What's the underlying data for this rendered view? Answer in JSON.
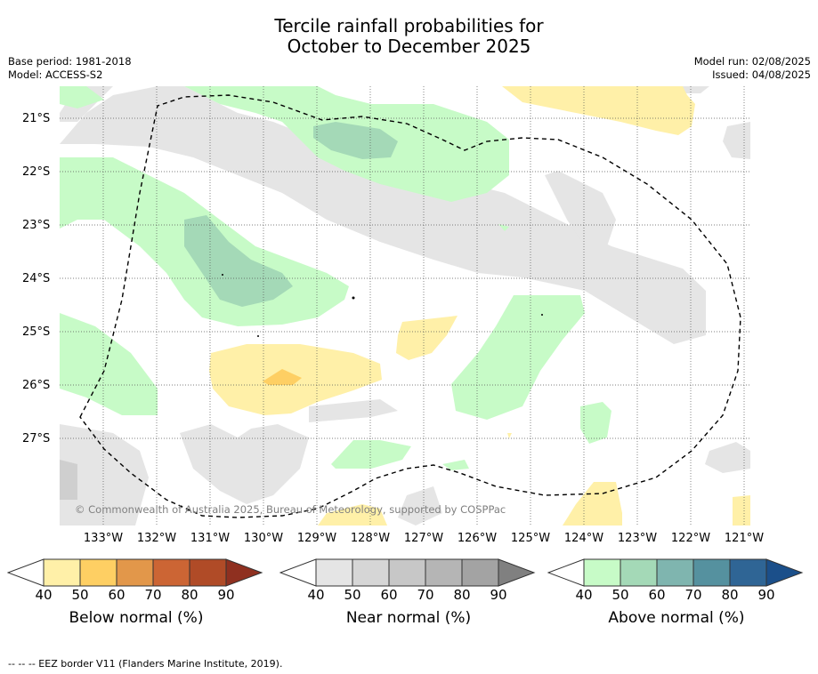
{
  "title": {
    "line1": "Tercile rainfall probabilities for",
    "line2": "October to December 2025"
  },
  "meta_left": {
    "base_period": "Base period: 1981-2018",
    "model": "Model: ACCESS-S2"
  },
  "meta_right": {
    "model_run": "Model run: 02/08/2025",
    "issued": "Issued: 04/08/2025"
  },
  "copyright": "© Commonwealth of Australia 2025, Bureau of Meteorology, supported by COSPPac",
  "lat_labels": [
    "21°S",
    "22°S",
    "23°S",
    "24°S",
    "25°S",
    "26°S",
    "27°S"
  ],
  "lon_labels": [
    "133°W",
    "132°W",
    "131°W",
    "130°W",
    "129°W",
    "128°W",
    "127°W",
    "126°W",
    "125°W",
    "124°W",
    "123°W",
    "122°W",
    "121°W"
  ],
  "colorbars": [
    {
      "title": "Below normal (%)",
      "ticks": [
        "40",
        "50",
        "60",
        "70",
        "80",
        "90"
      ],
      "colors": [
        "#fff0a8",
        "#fecf63",
        "#e2974a",
        "#cc6534",
        "#b04b27",
        "#8f3020"
      ]
    },
    {
      "title": "Near normal (%)",
      "ticks": [
        "40",
        "50",
        "60",
        "70",
        "80",
        "90"
      ],
      "colors": [
        "#e5e5e5",
        "#d6d6d6",
        "#c7c7c7",
        "#b5b5b5",
        "#a3a3a3",
        "#808080"
      ]
    },
    {
      "title": "Above normal (%)",
      "ticks": [
        "40",
        "50",
        "60",
        "70",
        "80",
        "90"
      ],
      "colors": [
        "#c7fbc7",
        "#a4d9b7",
        "#7fb5af",
        "#55919f",
        "#2f6595",
        "#1b4f8a"
      ]
    }
  ],
  "footnote": "--  --  -- EEZ border V11 (Flanders Marine Institute, 2019)."
}
